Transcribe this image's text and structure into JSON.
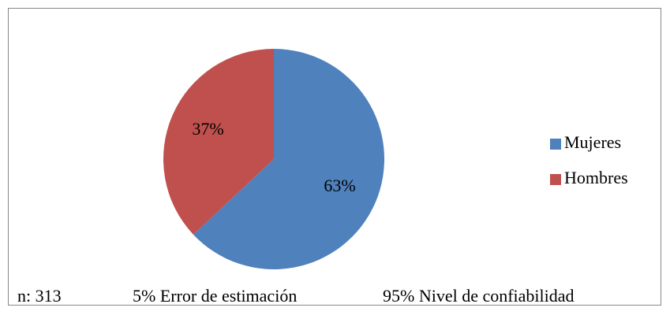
{
  "chart_data": {
    "type": "pie",
    "categories": [
      "Mujeres",
      "Hombres"
    ],
    "values": [
      63,
      37
    ],
    "value_labels": [
      "63%",
      "37%"
    ],
    "colors": [
      "#4f81bd",
      "#c0504d"
    ],
    "legend": "right",
    "annotations": [
      "n: 313",
      "5% Error de estimación",
      "95% Nivel de confiabilidad"
    ]
  }
}
